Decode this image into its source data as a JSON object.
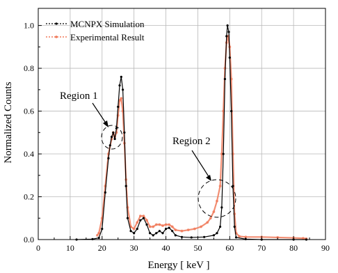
{
  "chart_data": {
    "type": "line",
    "xlabel": "Energy [ keV ]",
    "ylabel": "Normalized Counts",
    "xlim": [
      0,
      90
    ],
    "ylim": [
      0,
      1.08
    ],
    "grid": true,
    "legend_position": "top-left",
    "x_ticks": [
      "0",
      "10",
      "20",
      "30",
      "40",
      "50",
      "60",
      "70",
      "80",
      "90"
    ],
    "y_ticks": [
      "0.0",
      "0.2",
      "0.4",
      "0.6",
      "0.8",
      "1.0"
    ],
    "annotations": [
      {
        "text": "Region 1",
        "target": [
          24,
          0.49
        ]
      },
      {
        "text": "Region 2",
        "target": [
          55,
          0.19
        ]
      }
    ],
    "colors": {
      "simulation": "#000000",
      "experimental": "#f07a5a"
    },
    "series": [
      {
        "name": "MCNPX Simulation",
        "color": "#000000",
        "points": [
          [
            12,
            0
          ],
          [
            17,
            0.002
          ],
          [
            19,
            0.008
          ],
          [
            20,
            0.05
          ],
          [
            21,
            0.22
          ],
          [
            22,
            0.38
          ],
          [
            22.5,
            0.44
          ],
          [
            23,
            0.48
          ],
          [
            23.5,
            0.5
          ],
          [
            24,
            0.47
          ],
          [
            24.5,
            0.52
          ],
          [
            25,
            0.62
          ],
          [
            25.5,
            0.72
          ],
          [
            26,
            0.76
          ],
          [
            26.5,
            0.7
          ],
          [
            27,
            0.5
          ],
          [
            27.5,
            0.25
          ],
          [
            28,
            0.1
          ],
          [
            29,
            0.04
          ],
          [
            30,
            0.03
          ],
          [
            31,
            0.05
          ],
          [
            32,
            0.09
          ],
          [
            33,
            0.1
          ],
          [
            34,
            0.07
          ],
          [
            35,
            0.03
          ],
          [
            36,
            0.02
          ],
          [
            37,
            0.03
          ],
          [
            38,
            0.04
          ],
          [
            39,
            0.03
          ],
          [
            40,
            0.05
          ],
          [
            41,
            0.055
          ],
          [
            42,
            0.04
          ],
          [
            43,
            0.02
          ],
          [
            45,
            0.012
          ],
          [
            48,
            0.01
          ],
          [
            52,
            0.012
          ],
          [
            55,
            0.02
          ],
          [
            56,
            0.03
          ],
          [
            57,
            0.06
          ],
          [
            57.5,
            0.15
          ],
          [
            58,
            0.4
          ],
          [
            58.5,
            0.75
          ],
          [
            59,
            0.95
          ],
          [
            59.3,
            1.0
          ],
          [
            59.7,
            0.97
          ],
          [
            60,
            0.85
          ],
          [
            60.5,
            0.6
          ],
          [
            61,
            0.25
          ],
          [
            61.5,
            0.06
          ],
          [
            62,
            0.01
          ],
          [
            65,
            0.002
          ],
          [
            70,
            0.0
          ],
          [
            80,
            0.0
          ],
          [
            84,
            0.0
          ]
        ]
      },
      {
        "name": "Experimental Result",
        "color": "#f07a5a",
        "points": [
          [
            18.5,
            0.02
          ],
          [
            19,
            0.03
          ],
          [
            20,
            0.1
          ],
          [
            21,
            0.25
          ],
          [
            22,
            0.4
          ],
          [
            23,
            0.47
          ],
          [
            23.5,
            0.5
          ],
          [
            24,
            0.48
          ],
          [
            24.5,
            0.5
          ],
          [
            25,
            0.58
          ],
          [
            25.5,
            0.65
          ],
          [
            26,
            0.66
          ],
          [
            26.5,
            0.6
          ],
          [
            27,
            0.45
          ],
          [
            27.5,
            0.28
          ],
          [
            28,
            0.15
          ],
          [
            29,
            0.06
          ],
          [
            30,
            0.05
          ],
          [
            31,
            0.08
          ],
          [
            32,
            0.11
          ],
          [
            33,
            0.11
          ],
          [
            34,
            0.09
          ],
          [
            35,
            0.06
          ],
          [
            36,
            0.06
          ],
          [
            37,
            0.07
          ],
          [
            38,
            0.07
          ],
          [
            39,
            0.065
          ],
          [
            40,
            0.07
          ],
          [
            41,
            0.07
          ],
          [
            42,
            0.06
          ],
          [
            43,
            0.045
          ],
          [
            45,
            0.04
          ],
          [
            47,
            0.045
          ],
          [
            49,
            0.05
          ],
          [
            51,
            0.06
          ],
          [
            53,
            0.08
          ],
          [
            54,
            0.1
          ],
          [
            55,
            0.13
          ],
          [
            56,
            0.18
          ],
          [
            57,
            0.25
          ],
          [
            57.5,
            0.4
          ],
          [
            58,
            0.6
          ],
          [
            58.5,
            0.8
          ],
          [
            59,
            0.92
          ],
          [
            59.5,
            0.95
          ],
          [
            60,
            0.9
          ],
          [
            60.5,
            0.75
          ],
          [
            61,
            0.4
          ],
          [
            61.5,
            0.12
          ],
          [
            62,
            0.03
          ],
          [
            63,
            0.015
          ],
          [
            65,
            0.012
          ],
          [
            70,
            0.012
          ],
          [
            75,
            0.01
          ],
          [
            80,
            0.008
          ],
          [
            83,
            0.006
          ],
          [
            84,
            0.004
          ]
        ]
      }
    ]
  }
}
